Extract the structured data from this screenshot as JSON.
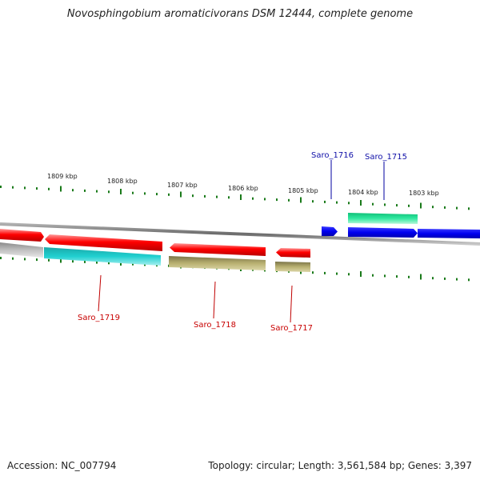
{
  "title": "Novosphingobium aromaticivorans DSM 12444, complete genome",
  "scale_labels": [
    "1809 kbp",
    "1808 kbp",
    "1807 kbp",
    "1806 kbp",
    "1805 kbp",
    "1804 kbp",
    "1803 kbp"
  ],
  "genes": [
    {
      "name": "Saro_1716",
      "color": "#1010a8"
    },
    {
      "name": "Saro_1715",
      "color": "#1010a8"
    },
    {
      "name": "Saro_1719",
      "color": "#c80000"
    },
    {
      "name": "Saro_1718",
      "color": "#c80000"
    },
    {
      "name": "Saro_1717",
      "color": "#c80000"
    }
  ],
  "colors": {
    "tick": "#1a7a1a",
    "backbone": "#808080",
    "red": "#e80000",
    "blue": "#0a0ae6",
    "cyan": "#20c8c8",
    "olive": "#b0a868",
    "green": "#20e090",
    "gray": "#bcbcbc"
  },
  "footer": {
    "accession": "Accession: NC_007794",
    "summary": "Topology: circular; Length: 3,561,584 bp; Genes: 3,397"
  }
}
